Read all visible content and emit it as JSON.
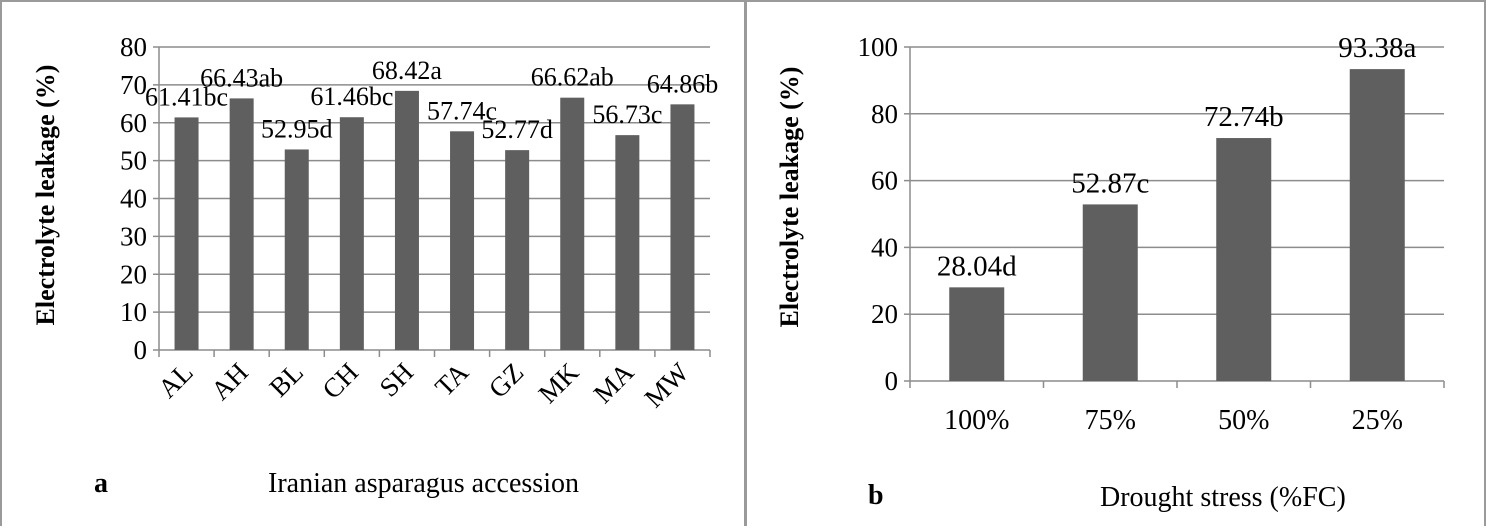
{
  "chart_data": [
    {
      "type": "bar",
      "panel_letter": "a",
      "categories": [
        "AL",
        "AH",
        "BL",
        "CH",
        "SH",
        "TA",
        "GZ",
        "MK",
        "MA",
        "MW"
      ],
      "values": [
        61.41,
        66.43,
        52.95,
        61.46,
        68.42,
        57.74,
        52.77,
        66.62,
        56.73,
        64.86
      ],
      "data_labels": [
        "61.41bc",
        "66.43ab",
        "52.95d",
        "61.46bc",
        "68.42a",
        "57.74c",
        "52.77d",
        "66.62ab",
        "56.73c",
        "64.86b"
      ],
      "xlabel": "Iranian asparagus accession",
      "ylabel": "Electrolyte leakage (%)",
      "ylim": [
        0,
        80
      ],
      "yticks": [
        0,
        10,
        20,
        30,
        40,
        50,
        60,
        70,
        80
      ],
      "grid": true,
      "bar_color": "#5f5f5f"
    },
    {
      "type": "bar",
      "panel_letter": "b",
      "categories": [
        "100%",
        "75%",
        "50%",
        "25%"
      ],
      "values": [
        28.04,
        52.87,
        72.74,
        93.38
      ],
      "data_labels": [
        "28.04d",
        "52.87c",
        "72.74b",
        "93.38a"
      ],
      "xlabel": "Drought stress (%FC)",
      "ylabel": "Electrolyte leakage (%)",
      "ylim": [
        0,
        100
      ],
      "yticks": [
        0,
        20,
        40,
        60,
        80,
        100
      ],
      "grid": true,
      "bar_color": "#5f5f5f"
    }
  ]
}
